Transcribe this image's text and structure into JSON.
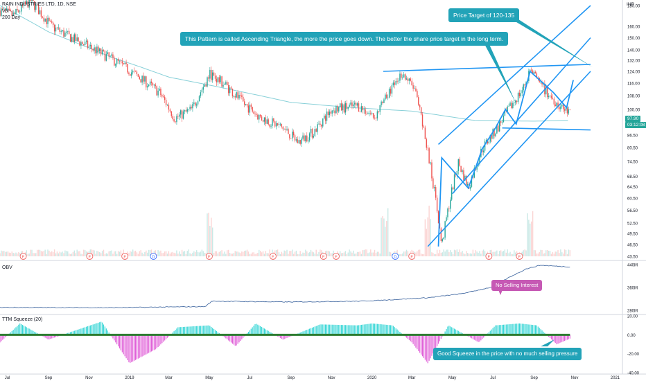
{
  "header": {
    "symbol_line": "RAIN INDUSTRIES LTD, 1D, NSE",
    "vol_label": "Vol",
    "ma_label": "200 Day",
    "currency": "INR"
  },
  "callouts": {
    "pattern": "This Pattern is called Ascending Triangle, the more the price goes down. The better the share price target in the long term.",
    "target": "Price Target of 120-135",
    "obv": "No Selling Interest",
    "squeeze": "Good Squeeze in the price with no much selling pressure"
  },
  "price_tags": {
    "last": "97.90",
    "countdown": "03:12:08"
  },
  "panels": {
    "obv": "OBV",
    "squeeze": "TTM Squeeze (20)"
  },
  "events": [
    "E",
    "E",
    "E",
    "D",
    "E",
    "E",
    "E",
    "E",
    "D",
    "E",
    "E",
    "E"
  ],
  "chart_data": [
    {
      "type": "candlestick",
      "title": "RAIN INDUSTRIES LTD, 1D, NSE",
      "x_tick_labels": [
        "Jul",
        "Sep",
        "Nov",
        "2019",
        "Mar",
        "May",
        "Jul",
        "Sep",
        "Nov",
        "2020",
        "Mar",
        "May",
        "Jul",
        "Sep",
        "Nov",
        "2021"
      ],
      "y_tick_labels": [
        "180.00",
        "160.00",
        "150.00",
        "140.00",
        "132.00",
        "124.00",
        "116.00",
        "108.00",
        "100.00",
        "93.50",
        "86.50",
        "80.50",
        "74.50",
        "68.50",
        "64.50",
        "60.50",
        "56.50",
        "52.50",
        "49.50",
        "46.50",
        "43.50"
      ],
      "ylim": [
        43.5,
        180
      ],
      "log_scale": true,
      "path_x": [
        "2018-06-20",
        "2018-07-10",
        "2018-08-05",
        "2018-09-05",
        "2018-10-05",
        "2018-11-10",
        "2018-12-15",
        "2019-01-15",
        "2019-02-15",
        "2019-03-10",
        "2019-04-05",
        "2019-05-02",
        "2019-05-25",
        "2019-06-20",
        "2019-07-15",
        "2019-08-20",
        "2019-09-12",
        "2019-10-05",
        "2019-11-01",
        "2019-12-10",
        "2020-01-05",
        "2020-01-20",
        "2020-02-15",
        "2020-03-05",
        "2020-03-25",
        "2020-04-15",
        "2020-05-10",
        "2020-05-25",
        "2020-06-15",
        "2020-07-08",
        "2020-07-25",
        "2020-08-15",
        "2020-08-26",
        "2020-09-20",
        "2020-10-12",
        "2020-10-25"
      ],
      "path_y": [
        175,
        170,
        185,
        160,
        150,
        140,
        130,
        120,
        110,
        95,
        100,
        122,
        115,
        104,
        96,
        90,
        83,
        88,
        100,
        102,
        96,
        105,
        123,
        112,
        78,
        46,
        74,
        64,
        80,
        90,
        100,
        112,
        124,
        110,
        101,
        97.9
      ],
      "ma200_x": [
        "2018-06-20",
        "2018-09-01",
        "2018-12-01",
        "2019-03-01",
        "2019-06-01",
        "2019-09-01",
        "2019-12-01",
        "2020-03-01",
        "2020-06-01",
        "2020-09-01",
        "2020-10-25"
      ],
      "ma200_y": [
        180,
        155,
        135,
        120,
        112,
        104,
        101,
        99,
        94,
        93.5,
        94
      ],
      "volume_spikes_at": [
        "2019-05-02",
        "2020-01-20",
        "2020-03-25",
        "2020-08-26"
      ],
      "trendlines": [
        {
          "name": "resistance",
          "x": [
            "2020-01-18",
            "2020-11-25"
          ],
          "y": [
            124,
            129
          ]
        },
        {
          "name": "support",
          "x": [
            "2020-07-15",
            "2020-11-25"
          ],
          "y": [
            90,
            89
          ]
        },
        {
          "name": "channel-lower",
          "x": [
            "2020-03-25",
            "2020-11-25"
          ],
          "y": [
            46,
            124
          ]
        },
        {
          "name": "channel-upper",
          "x": [
            "2020-04-10",
            "2020-11-25"
          ],
          "y": [
            82,
            180
          ]
        },
        {
          "name": "channel-middle",
          "x": [
            "2020-05-01",
            "2020-11-25"
          ],
          "y": [
            62,
            150
          ]
        }
      ],
      "projection": {
        "x": [
          "2020-04-10",
          "2020-04-15",
          "2020-05-25",
          "2020-06-15",
          "2020-07-05",
          "2020-07-20",
          "2020-08-05",
          "2020-08-26",
          "2020-09-30",
          "2020-10-20",
          "2020-10-30"
        ],
        "y": [
          46,
          76,
          64,
          80,
          90,
          100,
          92,
          124,
          110,
          101,
          118
        ]
      }
    },
    {
      "type": "line",
      "title": "OBV",
      "y_tick_labels": [
        "440M",
        "360M",
        "280M"
      ],
      "ylim": [
        270,
        445
      ],
      "x": [
        "2018-06-20",
        "2018-12-01",
        "2019-04-25",
        "2019-05-05",
        "2019-09-01",
        "2019-12-15",
        "2020-01-15",
        "2020-03-25",
        "2020-05-15",
        "2020-07-01",
        "2020-07-25",
        "2020-08-20",
        "2020-09-10",
        "2020-10-25"
      ],
      "y": [
        290,
        289,
        293,
        312,
        309,
        312,
        315,
        324,
        338,
        362,
        395,
        425,
        438,
        432
      ]
    },
    {
      "type": "bar",
      "title": "TTM Squeeze (20)",
      "y_tick_labels": [
        "20.00",
        "0.00",
        "-20.00",
        "-40.00"
      ],
      "ylim": [
        -40,
        20
      ],
      "x": [
        "2018-06-20",
        "2018-07-20",
        "2018-09-01",
        "2018-11-20",
        "2019-01-01",
        "2019-02-10",
        "2019-03-15",
        "2019-05-01",
        "2019-06-10",
        "2019-07-10",
        "2019-08-20",
        "2019-10-15",
        "2019-12-10",
        "2020-01-01",
        "2020-02-01",
        "2020-03-01",
        "2020-03-25",
        "2020-04-25",
        "2020-06-10",
        "2020-07-05",
        "2020-08-10",
        "2020-09-05",
        "2020-10-05",
        "2020-10-25"
      ],
      "y": [
        -8,
        12,
        -5,
        14,
        -30,
        -15,
        8,
        10,
        -12,
        12,
        -5,
        11,
        10,
        12,
        10,
        -8,
        -30,
        10,
        -8,
        10,
        12,
        10,
        -10,
        -4
      ]
    }
  ]
}
